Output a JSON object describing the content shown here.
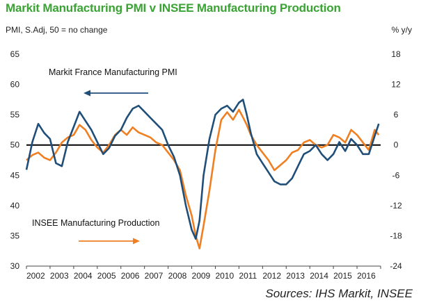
{
  "title": "Markit Manufacturing PMI v INSEE Manufacturing Production",
  "source": "Sources: IHS Markit, INSEE",
  "colors": {
    "title": "#3aa334",
    "pmi": "#1f4e79",
    "insee": "#f07f22",
    "zero_line": "#000000"
  },
  "chart_data": {
    "type": "line",
    "left_axis_label": "PMI, S.Adj, 50 = no change",
    "right_axis_label": "% y/y",
    "left_ylim": [
      30,
      65
    ],
    "left_ticks": [
      "30",
      "35",
      "40",
      "45",
      "50",
      "55",
      "60",
      "65"
    ],
    "right_ylim": [
      -24,
      18
    ],
    "right_ticks": [
      "-24",
      "-18",
      "-12",
      "-6",
      "0",
      "6",
      "12",
      "18"
    ],
    "x_ticks": [
      "2002",
      "2003",
      "2004",
      "2005",
      "2006",
      "2007",
      "2008",
      "2009",
      "2010",
      "2011",
      "2012",
      "2013",
      "2014",
      "2015",
      "2016"
    ],
    "grid": false,
    "annotations": [
      {
        "text": "Markit France Manufacturing PMI",
        "arrow": "left",
        "series": "pmi"
      },
      {
        "text": "INSEE Manufacturing Production",
        "arrow": "right",
        "series": "insee"
      }
    ],
    "series": [
      {
        "name": "Markit France Manufacturing PMI",
        "axis": "left",
        "x": [
          2002.0,
          2002.25,
          2002.5,
          2002.75,
          2003.0,
          2003.25,
          2003.5,
          2003.75,
          2004.0,
          2004.25,
          2004.5,
          2004.75,
          2005.0,
          2005.25,
          2005.5,
          2005.75,
          2006.0,
          2006.25,
          2006.5,
          2006.75,
          2007.0,
          2007.25,
          2007.5,
          2007.75,
          2008.0,
          2008.25,
          2008.5,
          2008.75,
          2009.0,
          2009.17,
          2009.33,
          2009.5,
          2009.75,
          2010.0,
          2010.25,
          2010.5,
          2010.75,
          2011.0,
          2011.17,
          2011.33,
          2011.5,
          2011.75,
          2012.0,
          2012.25,
          2012.5,
          2012.75,
          2013.0,
          2013.25,
          2013.5,
          2013.75,
          2014.0,
          2014.25,
          2014.5,
          2014.75,
          2015.0,
          2015.25,
          2015.5,
          2015.75,
          2016.0,
          2016.25,
          2016.5,
          2016.75,
          2016.92
        ],
        "values": [
          45.9,
          50.5,
          53.5,
          52.0,
          51.0,
          47.0,
          46.5,
          50.5,
          53.0,
          55.5,
          54.0,
          52.5,
          50.5,
          48.5,
          49.5,
          51.5,
          52.5,
          54.5,
          56.0,
          56.5,
          55.5,
          54.5,
          53.5,
          52.5,
          50.0,
          48.0,
          45.0,
          40.0,
          36.0,
          34.5,
          37.5,
          45.0,
          51.0,
          55.0,
          56.0,
          56.5,
          55.5,
          57.0,
          57.5,
          55.0,
          52.0,
          48.5,
          47.0,
          45.5,
          44.0,
          43.5,
          43.5,
          44.5,
          46.5,
          48.5,
          49.0,
          50.0,
          48.5,
          47.5,
          48.5,
          50.5,
          49.0,
          51.0,
          50.0,
          48.5,
          48.5,
          51.5,
          53.5
        ]
      },
      {
        "name": "INSEE Manufacturing Production",
        "axis": "right",
        "x": [
          2002.0,
          2002.25,
          2002.5,
          2002.75,
          2003.0,
          2003.25,
          2003.5,
          2003.75,
          2004.0,
          2004.25,
          2004.5,
          2004.75,
          2005.0,
          2005.25,
          2005.5,
          2005.75,
          2006.0,
          2006.25,
          2006.5,
          2006.75,
          2007.0,
          2007.25,
          2007.5,
          2007.75,
          2008.0,
          2008.25,
          2008.5,
          2008.75,
          2009.0,
          2009.17,
          2009.33,
          2009.5,
          2009.75,
          2010.0,
          2010.25,
          2010.5,
          2010.75,
          2011.0,
          2011.17,
          2011.33,
          2011.5,
          2011.75,
          2012.0,
          2012.25,
          2012.5,
          2012.75,
          2013.0,
          2013.25,
          2013.5,
          2013.75,
          2014.0,
          2014.25,
          2014.5,
          2014.75,
          2015.0,
          2015.25,
          2015.5,
          2015.75,
          2016.0,
          2016.25,
          2016.5,
          2016.75,
          2016.92
        ],
        "values": [
          -3.0,
          -2.0,
          -1.5,
          -2.5,
          -3.0,
          -1.5,
          0.5,
          1.5,
          2.0,
          4.0,
          3.0,
          1.0,
          -0.5,
          -1.5,
          0.0,
          2.0,
          3.0,
          2.0,
          3.5,
          2.5,
          2.0,
          1.5,
          0.5,
          0.0,
          -1.5,
          -3.0,
          -5.0,
          -10.0,
          -14.0,
          -18.0,
          -20.5,
          -16.0,
          -9.0,
          -1.0,
          5.0,
          6.5,
          5.0,
          7.0,
          5.5,
          4.0,
          2.0,
          0.0,
          -1.5,
          -3.0,
          -5.0,
          -4.0,
          -3.0,
          -1.5,
          -1.0,
          0.5,
          1.0,
          0.0,
          -0.5,
          0.0,
          2.0,
          1.5,
          0.5,
          3.0,
          2.0,
          0.5,
          -1.0,
          3.0,
          2.0
        ]
      }
    ]
  }
}
